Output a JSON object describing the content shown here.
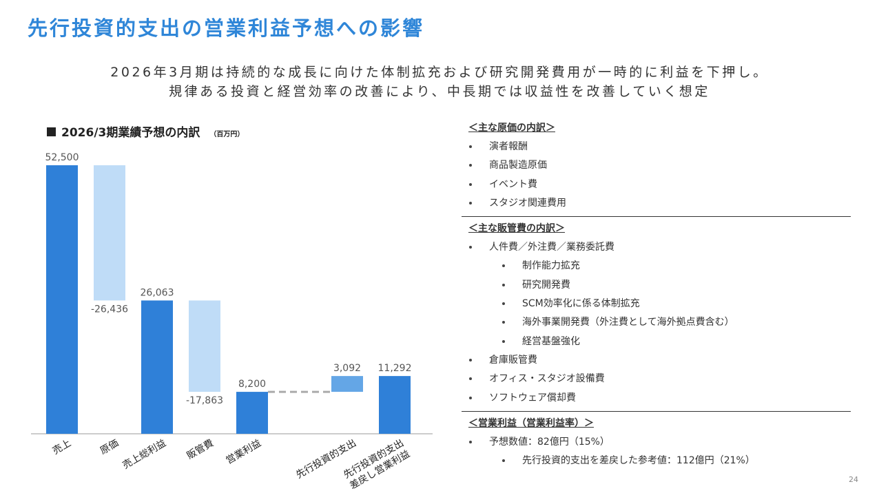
{
  "header": {
    "title": "先行投資的支出の営業利益予想への影響",
    "subtitle": [
      "2026年3月期は持続的な成長に向けた体制拡充および研究開発費用が一時的に利益を下押し。",
      "規律ある投資と経営効率の改善により、中長期では収益性を改善していく想定"
    ]
  },
  "chart_data": {
    "type": "waterfall",
    "title": "2026/3期業績予想の内訳",
    "unit": "（百万円）",
    "categories": [
      "売上",
      "原価",
      "売上総利益",
      "販管費",
      "営業利益",
      "先行投資的支出",
      [
        "先行投資的支出",
        "差戻し営業利益"
      ]
    ],
    "values": [
      52500,
      -26436,
      26063,
      -17863,
      8200,
      3092,
      11292
    ],
    "value_labels": [
      "52,500",
      "-26,436",
      "26,063",
      "-17,863",
      "8,200",
      "3,092",
      "11,292"
    ],
    "measure": [
      "absolute",
      "relative",
      "absolute",
      "relative",
      "absolute",
      "relative",
      "absolute"
    ],
    "colors": {
      "absolute": "#2f80d8",
      "negative": "#bfdcf7",
      "positive": "#64a6e6"
    }
  },
  "sections": [
    {
      "heading": "＜主な原価の内訳＞",
      "items": [
        {
          "text": "演者報酬",
          "sub": []
        },
        {
          "text": "商品製造原価",
          "sub": []
        },
        {
          "text": "イベント費",
          "sub": []
        },
        {
          "text": "スタジオ関連費用",
          "sub": []
        }
      ]
    },
    {
      "heading": "＜主な販管費の内訳＞",
      "items": [
        {
          "text": "人件費／外注費／業務委託費",
          "sub": [
            "制作能力拡充",
            "研究開発費",
            "SCM効率化に係る体制拡充",
            "海外事業開発費（外注費として海外拠点費含む）",
            "経営基盤強化"
          ]
        },
        {
          "text": "倉庫販管費",
          "sub": []
        },
        {
          "text": "オフィス・スタジオ設備費",
          "sub": []
        },
        {
          "text": "ソフトウェア償却費",
          "sub": []
        }
      ]
    },
    {
      "heading": "＜営業利益（営業利益率）＞",
      "items": [
        {
          "text": "予想数値：82億円（15%）",
          "sub": [
            "先行投資的支出を差戻した参考値：112億円（21%）"
          ]
        }
      ]
    }
  ],
  "page_number": "24"
}
